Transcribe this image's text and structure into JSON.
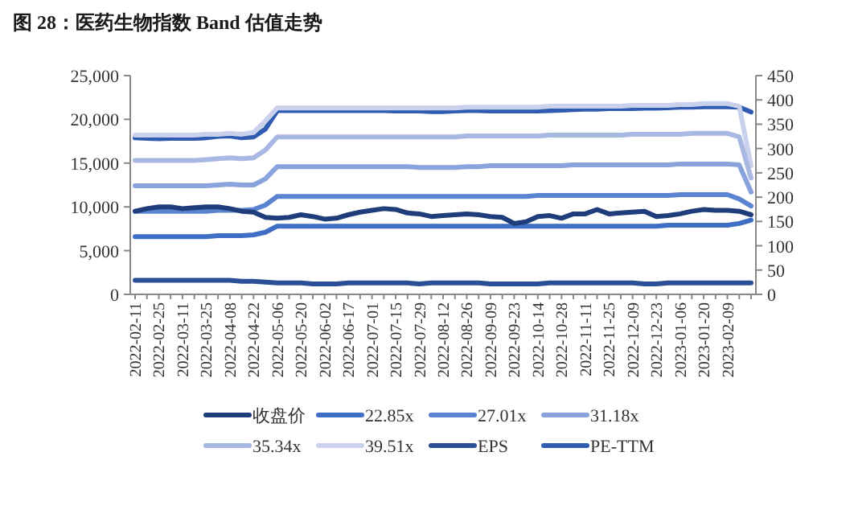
{
  "chart_data": {
    "type": "line",
    "title": "图 28：医药生物指数 Band 估值走势",
    "categories": [
      "2022-02-11",
      null,
      "2022-02-25",
      null,
      "2022-03-11",
      null,
      "2022-03-25",
      null,
      "2022-04-08",
      null,
      "2022-04-22",
      null,
      "2022-05-06",
      null,
      "2022-05-20",
      null,
      "2022-06-02",
      null,
      "2022-06-17",
      null,
      "2022-07-01",
      null,
      "2022-07-15",
      null,
      "2022-07-29",
      null,
      "2022-08-12",
      null,
      "2022-08-26",
      null,
      "2022-09-09",
      null,
      "2022-09-23",
      null,
      "2022-10-14",
      null,
      "2022-10-28",
      null,
      "2022-11-11",
      null,
      "2022-11-25",
      null,
      "2022-12-09",
      null,
      "2022-12-23",
      null,
      "2023-01-06",
      null,
      "2023-01-20",
      null,
      "2023-02-09",
      null,
      null
    ],
    "series": [
      {
        "name": "收盘价",
        "color": "#1f3d7a",
        "values": [
          9500,
          9800,
          10000,
          10000,
          9800,
          9900,
          10000,
          10000,
          9800,
          9500,
          9400,
          8800,
          8700,
          8800,
          9100,
          8900,
          8600,
          8700,
          9100,
          9400,
          9600,
          9800,
          9700,
          9300,
          9200,
          8900,
          9000,
          9100,
          9200,
          9100,
          8900,
          8800,
          8100,
          8300,
          8900,
          9000,
          8700,
          9200,
          9200,
          9700,
          9200,
          9300,
          9400,
          9500,
          8900,
          9000,
          9200,
          9500,
          9700,
          9600,
          9600,
          9500,
          9100
        ]
      },
      {
        "name": "22.85x",
        "color": "#3f6fc4",
        "values": [
          6600,
          6600,
          6600,
          6600,
          6600,
          6600,
          6600,
          6700,
          6700,
          6700,
          6800,
          7100,
          7800,
          7800,
          7800,
          7800,
          7800,
          7800,
          7800,
          7800,
          7800,
          7800,
          7800,
          7800,
          7800,
          7800,
          7800,
          7800,
          7800,
          7800,
          7800,
          7800,
          7800,
          7800,
          7800,
          7800,
          7800,
          7800,
          7800,
          7800,
          7800,
          7800,
          7800,
          7800,
          7800,
          7900,
          7900,
          7900,
          7900,
          7900,
          7900,
          8100,
          8500
        ]
      },
      {
        "name": "27.01x",
        "color": "#5b84d0",
        "values": [
          9500,
          9500,
          9500,
          9500,
          9500,
          9500,
          9500,
          9600,
          9600,
          9600,
          9700,
          10200,
          11200,
          11200,
          11200,
          11200,
          11200,
          11200,
          11200,
          11200,
          11200,
          11200,
          11200,
          11200,
          11200,
          11200,
          11200,
          11200,
          11200,
          11200,
          11200,
          11200,
          11200,
          11200,
          11300,
          11300,
          11300,
          11300,
          11300,
          11300,
          11300,
          11300,
          11300,
          11300,
          11300,
          11300,
          11400,
          11400,
          11400,
          11400,
          11400,
          10900,
          10100
        ]
      },
      {
        "name": "31.18x",
        "color": "#8aa3dc",
        "values": [
          12400,
          12400,
          12400,
          12400,
          12400,
          12400,
          12400,
          12500,
          12600,
          12500,
          12500,
          13200,
          14600,
          14600,
          14600,
          14600,
          14600,
          14600,
          14600,
          14600,
          14600,
          14600,
          14600,
          14600,
          14500,
          14500,
          14500,
          14500,
          14600,
          14600,
          14700,
          14700,
          14700,
          14700,
          14700,
          14700,
          14700,
          14800,
          14800,
          14800,
          14800,
          14800,
          14800,
          14800,
          14800,
          14800,
          14900,
          14900,
          14900,
          14900,
          14900,
          14800,
          11700
        ]
      },
      {
        "name": "35.34x",
        "color": "#a9b8e2",
        "values": [
          15300,
          15300,
          15300,
          15300,
          15300,
          15300,
          15400,
          15500,
          15600,
          15500,
          15600,
          16500,
          18000,
          18000,
          18000,
          18000,
          18000,
          18000,
          18000,
          18000,
          18000,
          18000,
          18000,
          18000,
          18000,
          18000,
          18000,
          18000,
          18100,
          18100,
          18100,
          18100,
          18100,
          18100,
          18100,
          18200,
          18200,
          18200,
          18200,
          18200,
          18200,
          18200,
          18300,
          18300,
          18300,
          18300,
          18300,
          18400,
          18400,
          18400,
          18400,
          18000,
          13300
        ]
      },
      {
        "name": "39.51x",
        "color": "#c9d1ec",
        "values": [
          18200,
          18200,
          18200,
          18200,
          18200,
          18200,
          18300,
          18300,
          18400,
          18300,
          18500,
          19800,
          21300,
          21300,
          21300,
          21300,
          21300,
          21300,
          21300,
          21300,
          21300,
          21300,
          21300,
          21300,
          21300,
          21300,
          21300,
          21300,
          21400,
          21400,
          21400,
          21400,
          21400,
          21400,
          21400,
          21500,
          21500,
          21500,
          21500,
          21500,
          21500,
          21500,
          21600,
          21600,
          21600,
          21600,
          21700,
          21700,
          21800,
          21800,
          21800,
          21500,
          14700
        ]
      },
      {
        "name": "EPS",
        "color": "#2a4f96",
        "values": [
          1600,
          1600,
          1600,
          1600,
          1600,
          1600,
          1600,
          1600,
          1600,
          1500,
          1500,
          1400,
          1300,
          1300,
          1300,
          1200,
          1200,
          1200,
          1300,
          1300,
          1300,
          1300,
          1300,
          1300,
          1200,
          1300,
          1300,
          1300,
          1300,
          1300,
          1200,
          1200,
          1200,
          1200,
          1200,
          1300,
          1300,
          1300,
          1300,
          1300,
          1300,
          1300,
          1300,
          1200,
          1200,
          1300,
          1300,
          1300,
          1300,
          1300,
          1300,
          1300,
          1300
        ]
      },
      {
        "name": "PE-TTM",
        "color": "#2f5cb0",
        "axis": "y2",
        "values": [
          322,
          321,
          320,
          321,
          321,
          321,
          322,
          325,
          326,
          322,
          324,
          340,
          378,
          378,
          378,
          378,
          378,
          378,
          378,
          378,
          378,
          378,
          377,
          377,
          377,
          376,
          376,
          377,
          378,
          378,
          377,
          377,
          377,
          377,
          377,
          378,
          379,
          380,
          381,
          381,
          382,
          382,
          382,
          383,
          383,
          384,
          385,
          385,
          386,
          386,
          386,
          385,
          375
        ]
      }
    ],
    "ylim": [
      0,
      25000
    ],
    "yticks": [
      {
        "value": 0,
        "label": "0"
      },
      {
        "value": 5000,
        "label": "5,000"
      },
      {
        "value": 10000,
        "label": "10,000"
      },
      {
        "value": 15000,
        "label": "15,000"
      },
      {
        "value": 20000,
        "label": "20,000"
      },
      {
        "value": 25000,
        "label": "25,000"
      }
    ],
    "y2lim": [
      0,
      450
    ],
    "y2ticks": [
      0,
      50,
      100,
      150,
      200,
      250,
      300,
      350,
      400,
      450
    ],
    "legend": "bottom",
    "grid": false
  }
}
